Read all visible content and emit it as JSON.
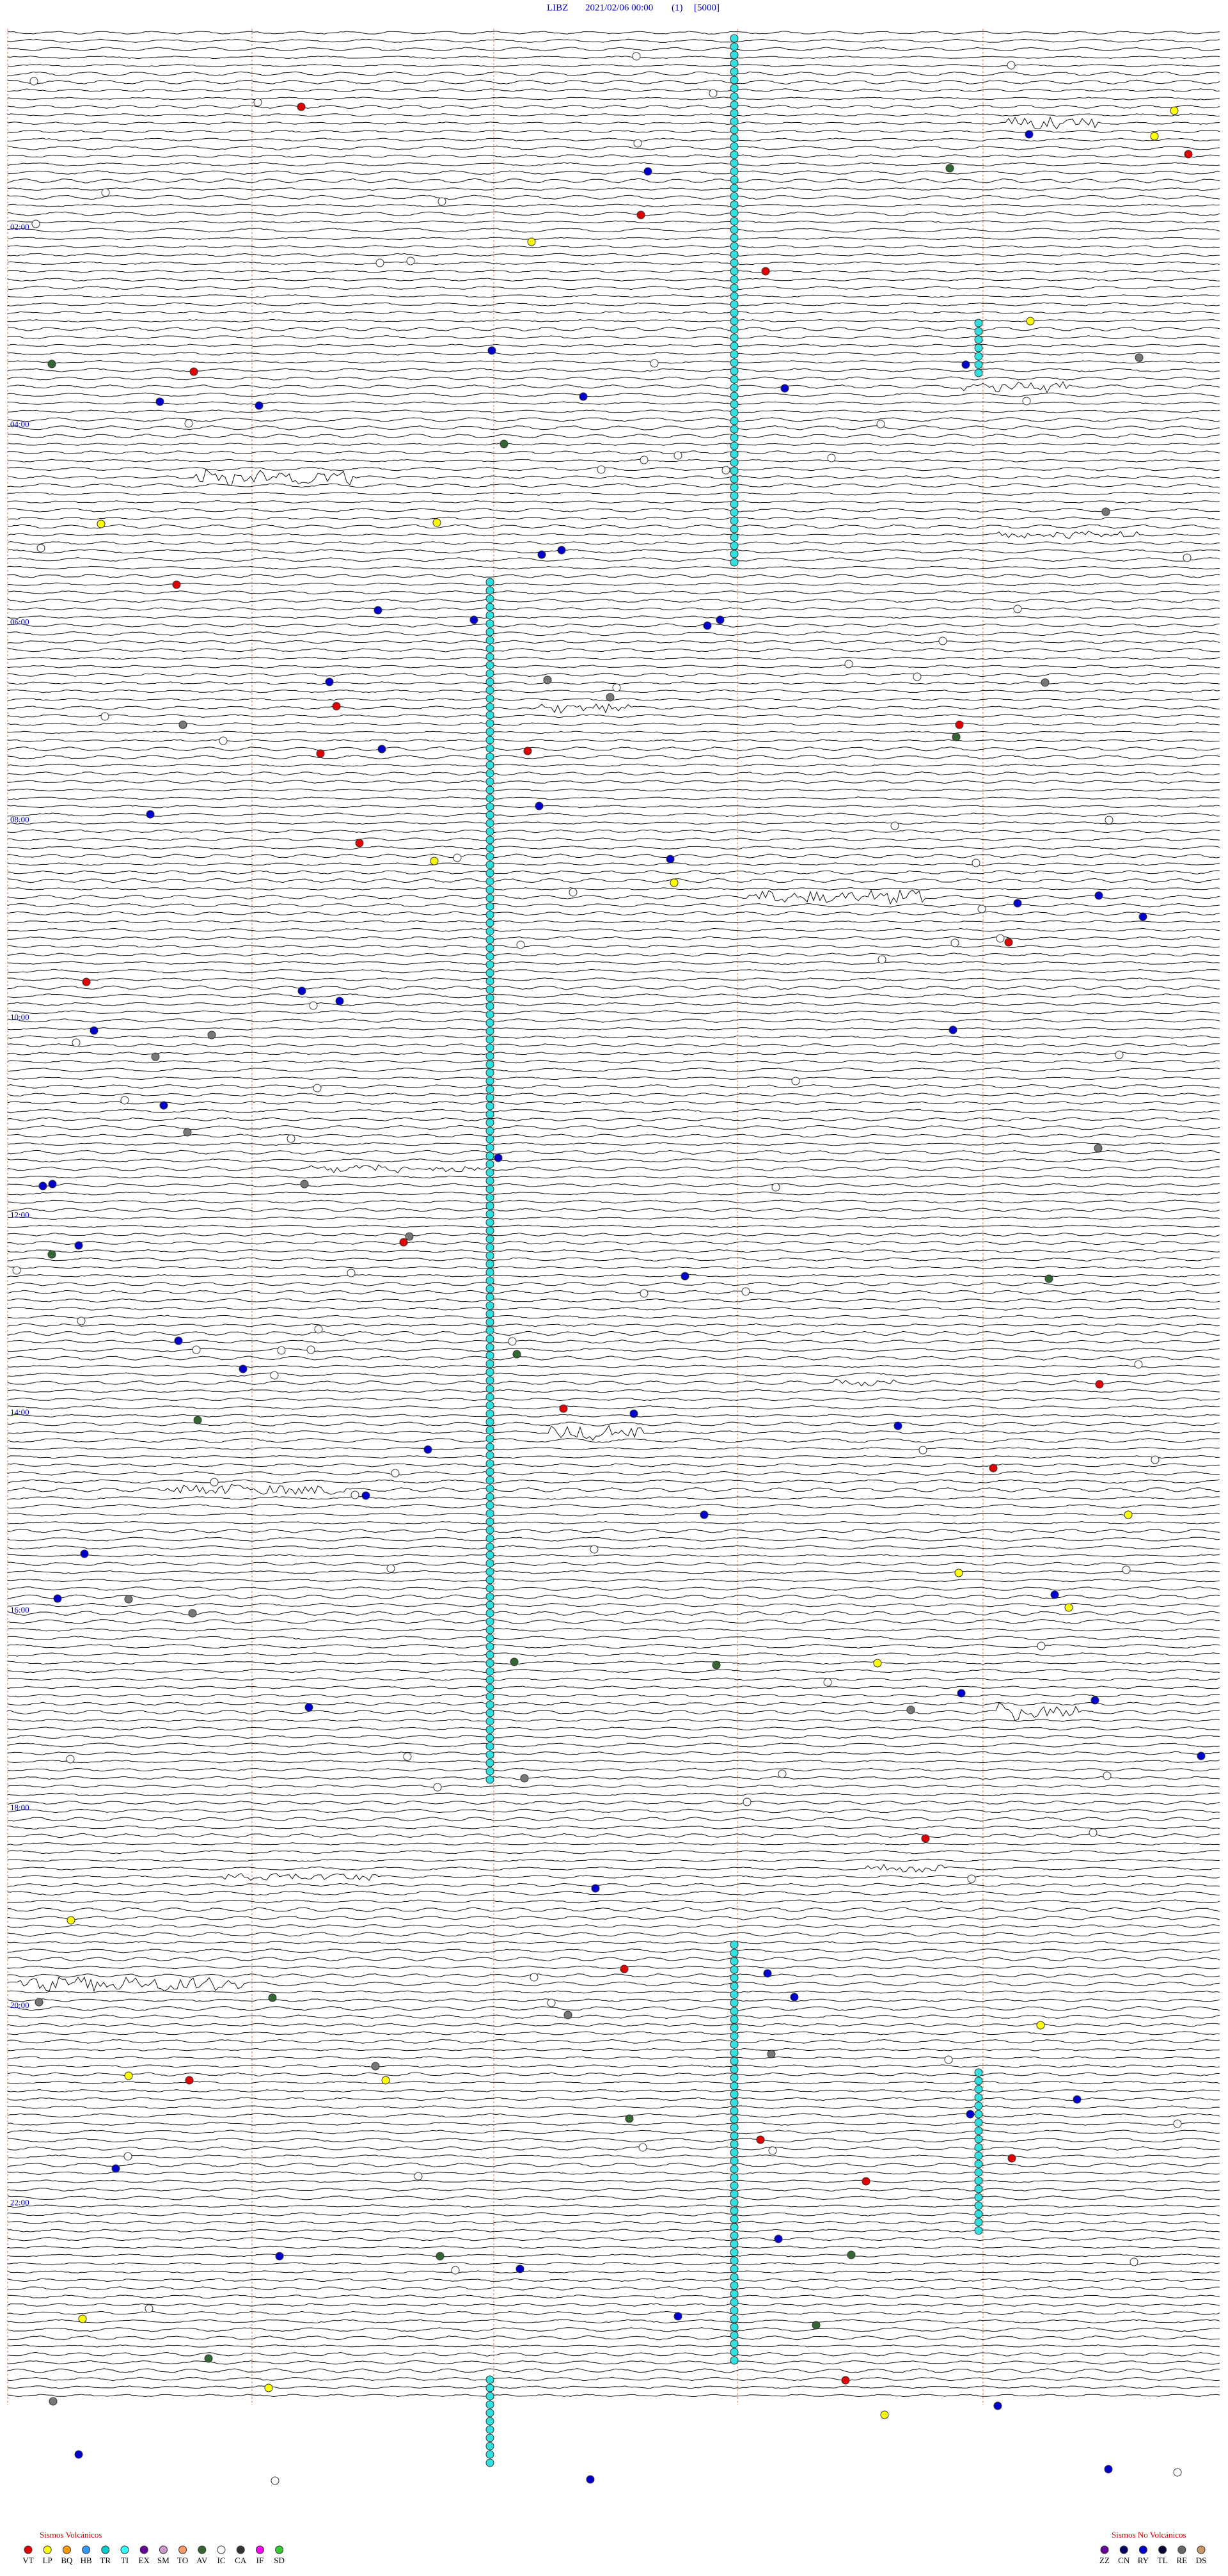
{
  "header": {
    "station": "LIBZ",
    "datetime": "2021/02/06 00:00",
    "channel": "(1)",
    "scale": "[5000]"
  },
  "time_labels": [
    "02:00",
    "04:00",
    "06:00",
    "08:00",
    "10:00",
    "12:00",
    "14:00",
    "16:00",
    "18:00",
    "20:00",
    "22:00"
  ],
  "legend_volcanic": {
    "title": "Sismos Volcánicos",
    "items": [
      {
        "code": "VT",
        "color": "#e00000"
      },
      {
        "code": "LP",
        "color": "#ffff00"
      },
      {
        "code": "BQ",
        "color": "#ff9900"
      },
      {
        "code": "HB",
        "color": "#3399ff"
      },
      {
        "code": "TR",
        "color": "#00cccc"
      },
      {
        "code": "TI",
        "color": "#33ffff"
      },
      {
        "code": "EX",
        "color": "#660099"
      },
      {
        "code": "SM",
        "color": "#cc99cc"
      },
      {
        "code": "TO",
        "color": "#ff9966"
      },
      {
        "code": "AV",
        "color": "#336633"
      },
      {
        "code": "IC",
        "color": "#ffffff"
      },
      {
        "code": "CA",
        "color": "#333333"
      },
      {
        "code": "IF",
        "color": "#ff00ff"
      },
      {
        "code": "SD",
        "color": "#33cc33"
      }
    ]
  },
  "legend_nonvolcanic": {
    "title": "Sismos No Volcánicos",
    "items": [
      {
        "code": "ZZ",
        "color": "#660099"
      },
      {
        "code": "CN",
        "color": "#000066"
      },
      {
        "code": "RY",
        "color": "#0000cc"
      },
      {
        "code": "TL",
        "color": "#000033"
      },
      {
        "code": "RE",
        "color": "#666666"
      },
      {
        "code": "DS",
        "color": "#cc9966"
      }
    ]
  }
}
